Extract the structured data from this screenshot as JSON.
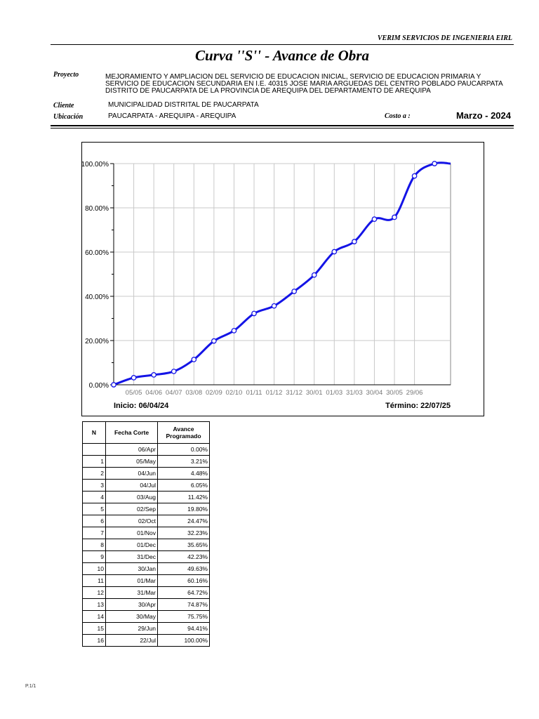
{
  "header": {
    "company": "VERIM SERVICIOS DE INGENIERIA EIRL",
    "title": "Curva ''S'' - Avance de Obra",
    "proyecto_label": "Proyecto",
    "proyecto": "MEJORAMIENTO Y AMPLIACION DEL SERVICIO DE EDUCACION INICIAL, SERVICIO DE EDUCACION PRIMARIA Y SERVICIO DE EDUCACION SECUNDARIA EN I.E. 40315 JOSE MARIA ARGUEDAS DEL CENTRO POBLADO PAUCARPATA DISTRITO DE PAUCARPATA DE LA PROVINCIA DE AREQUIPA DEL DEPARTAMENTO DE AREQUIPA",
    "cliente_label": "Cliente",
    "cliente": "MUNICIPALIDAD DISTRITAL DE PAUCARPATA",
    "ubicacion_label": "Ubicación",
    "ubicacion": "PAUCARPATA - AREQUIPA - AREQUIPA",
    "costo_label": "Costo a :",
    "fecha": "Marzo - 2024"
  },
  "chart_data": {
    "type": "line",
    "title": "",
    "xlabel": "",
    "ylabel": "",
    "ylim": [
      0,
      100
    ],
    "y_ticks": [
      "0.00%",
      "20.00%",
      "40.00%",
      "60.00%",
      "80.00%",
      "100.00%"
    ],
    "x_tick_labels": [
      "05/05",
      "04/06",
      "04/07",
      "03/08",
      "02/09",
      "02/10",
      "01/11",
      "01/12",
      "31/12",
      "30/01",
      "01/03",
      "31/03",
      "30/04",
      "30/05",
      "29/06"
    ],
    "start_label": "Inicio: 06/04/24",
    "end_label": "Término: 22/07/25",
    "grid": true,
    "series": [
      {
        "name": "",
        "color": "#1414e6",
        "x": [
          0,
          1,
          2,
          3,
          4,
          5,
          6,
          7,
          8,
          9,
          10,
          11,
          12,
          13,
          14,
          15,
          16,
          16.8
        ],
        "values": [
          0,
          3.21,
          4.48,
          6.05,
          11.42,
          19.8,
          24.47,
          32.23,
          35.65,
          42.23,
          49.63,
          60.16,
          64.72,
          74.87,
          75.75,
          94.41,
          100.0,
          100.0
        ]
      }
    ]
  },
  "table": {
    "headers": [
      "N",
      "Fecha Corte",
      "Avance Programado"
    ],
    "rows": [
      [
        "",
        "06/Apr",
        "0.00%"
      ],
      [
        "1",
        "05/May",
        "3.21%"
      ],
      [
        "2",
        "04/Jun",
        "4.48%"
      ],
      [
        "3",
        "04/Jul",
        "6.05%"
      ],
      [
        "4",
        "03/Aug",
        "11.42%"
      ],
      [
        "5",
        "02/Sep",
        "19.80%"
      ],
      [
        "6",
        "02/Oct",
        "24.47%"
      ],
      [
        "7",
        "01/Nov",
        "32.23%"
      ],
      [
        "8",
        "01/Dec",
        "35.65%"
      ],
      [
        "9",
        "31/Dec",
        "42.23%"
      ],
      [
        "10",
        "30/Jan",
        "49.63%"
      ],
      [
        "11",
        "01/Mar",
        "60.16%"
      ],
      [
        "12",
        "31/Mar",
        "64.72%"
      ],
      [
        "13",
        "30/Apr",
        "74.87%"
      ],
      [
        "14",
        "30/May",
        "75.75%"
      ],
      [
        "15",
        "29/Jun",
        "94.41%"
      ],
      [
        "16",
        "22/Jul",
        "100.00%"
      ]
    ]
  },
  "footer": {
    "page": "P.1/1"
  }
}
